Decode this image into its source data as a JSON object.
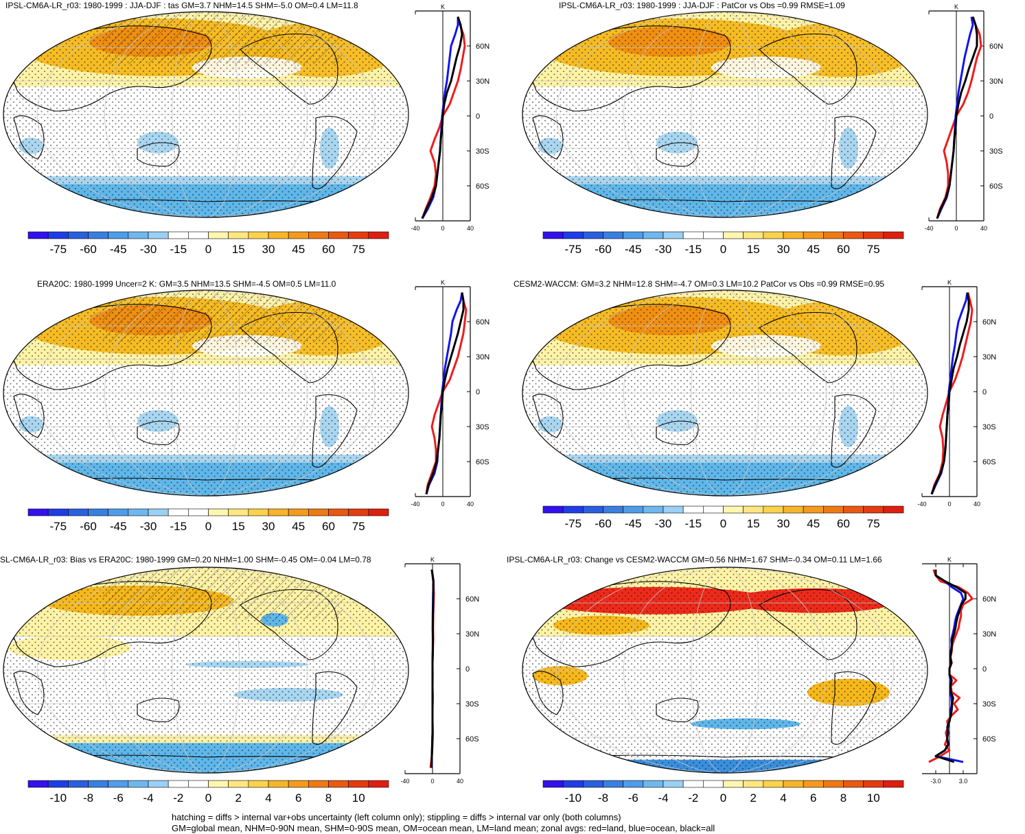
{
  "colors": {
    "land": "#ee1c1c",
    "ocean": "#1414ee",
    "all": "#000000",
    "warm_light": "#fff3a6",
    "warm_mid": "#f6b81b",
    "warm_deep": "#f08a10",
    "cold_light": "#a9d7f2",
    "cold_mid": "#5fb7ea",
    "cold_deep": "#3a8fdc"
  },
  "colorbar_scales": {
    "absolute": [
      "-75",
      "-60",
      "-45",
      "-30",
      "-15",
      "0",
      "15",
      "30",
      "45",
      "60",
      "75"
    ],
    "difference": [
      "-10",
      "-8",
      "-6",
      "-4",
      "-2",
      "0",
      "2",
      "4",
      "6",
      "8",
      "10"
    ]
  },
  "panels": [
    {
      "title": "IPSL-CM6A-LR_r03: 1980-1999 : JJA-DJF : tas GM=3.7 NHM=14.5 SHM=-5.0 OM=0.4 LM=11.8",
      "unit": "K",
      "lat_labels": [
        "60N",
        "30N",
        "0",
        "30S",
        "60S"
      ],
      "x_ticks": [
        "-40",
        "0",
        "40"
      ],
      "colorbar": "absolute"
    },
    {
      "title": "IPSL-CM6A-LR_r03: 1980-1999 : JJA-DJF : PatCor vs Obs =0.99 RMSE=1.09",
      "unit": "K",
      "lat_labels": [
        "60N",
        "30N",
        "0",
        "30S",
        "60S"
      ],
      "x_ticks": [
        "-40",
        "0",
        "40"
      ],
      "colorbar": "absolute"
    },
    {
      "title": "ERA20C: 1980-1999 Uncer=2 K: GM=3.5 NHM=13.5 SHM=-4.5 OM=0.5 LM=11.0",
      "unit": "K",
      "lat_labels": [
        "60N",
        "30N",
        "0",
        "30S",
        "60S"
      ],
      "x_ticks": [
        "-40",
        "0",
        "40"
      ],
      "colorbar": "absolute"
    },
    {
      "title": "CESM2-WACCM: GM=3.2 NHM=12.8 SHM=-4.7 OM=0.3 LM=10.2 PatCor vs Obs =0.99 RMSE=0.95",
      "unit": "K",
      "lat_labels": [
        "60N",
        "30N",
        "0",
        "30S",
        "60S"
      ],
      "x_ticks": [
        "-40",
        "0",
        "40"
      ],
      "colorbar": "absolute"
    },
    {
      "title": "SL-CM6A-LR_r03: Bias vs ERA20C: 1980-1999 GM=0.20 NHM=1.00 SHM=-0.45 OM=-0.04 LM=0.78",
      "unit": "K",
      "lat_labels": [
        "60N",
        "30N",
        "0",
        "30S",
        "60S"
      ],
      "x_ticks": [
        "-40",
        "0",
        "40"
      ],
      "colorbar": "difference"
    },
    {
      "title": "IPSL-CM6A-LR_r03: Change vs CESM2-WACCM GM=0.56 NHM=1.67 SHM=-0.34 OM=0.11 LM=1.66",
      "unit": "K",
      "lat_labels": [
        "60N",
        "30N",
        "0",
        "30S",
        "60S"
      ],
      "x_ticks": [
        "-3.0",
        "3.0"
      ],
      "colorbar": "difference"
    }
  ],
  "chart_data": [
    {
      "type": "line",
      "panel": 0,
      "x_axis": "K",
      "ylim": [
        -90,
        90
      ],
      "xlim": [
        -40,
        40
      ],
      "series": [
        {
          "key": "land",
          "y": [
            -88,
            -80,
            -70,
            -60,
            -50,
            -40,
            -30,
            -20,
            -10,
            0,
            10,
            20,
            30,
            40,
            50,
            60,
            70,
            78,
            85
          ],
          "values": [
            -30,
            -25,
            -18,
            -12,
            -10,
            -12,
            -18,
            -12,
            -5,
            0,
            10,
            16,
            22,
            26,
            29,
            32,
            30,
            25,
            22
          ]
        },
        {
          "key": "ocean",
          "y": [
            -88,
            -80,
            -70,
            -60,
            -50,
            -40,
            -30,
            -20,
            -10,
            0,
            10,
            20,
            30,
            40,
            50,
            60,
            70,
            78,
            85
          ],
          "values": [
            -30,
            -22,
            -14,
            -10,
            -8,
            -6,
            -4,
            -3,
            -2,
            -1,
            1,
            3,
            6,
            8,
            10,
            12,
            18,
            22,
            22
          ]
        },
        {
          "key": "all",
          "y": [
            -88,
            -80,
            -70,
            -60,
            -50,
            -40,
            -30,
            -20,
            -10,
            0,
            10,
            20,
            30,
            40,
            50,
            60,
            70,
            78,
            85
          ],
          "values": [
            -30,
            -24,
            -16,
            -10,
            -8,
            -6,
            -4,
            -3,
            -1,
            0,
            2,
            6,
            12,
            16,
            20,
            25,
            28,
            26,
            22
          ]
        }
      ]
    },
    {
      "type": "line",
      "panel": 1,
      "x_axis": "K",
      "ylim": [
        -90,
        90
      ],
      "xlim": [
        -40,
        40
      ],
      "series": [
        {
          "key": "land",
          "y": [
            -88,
            -80,
            -70,
            -60,
            -50,
            -40,
            -30,
            -20,
            -10,
            0,
            10,
            20,
            30,
            40,
            50,
            60,
            70,
            78,
            85
          ],
          "values": [
            -28,
            -24,
            -16,
            -12,
            -12,
            -14,
            -18,
            -12,
            -6,
            0,
            10,
            17,
            22,
            26,
            30,
            36,
            34,
            28,
            24
          ]
        },
        {
          "key": "ocean",
          "y": [
            -88,
            -80,
            -70,
            -60,
            -50,
            -40,
            -30,
            -20,
            -10,
            0,
            10,
            20,
            30,
            40,
            50,
            60,
            70,
            78,
            85
          ],
          "values": [
            -28,
            -22,
            -14,
            -10,
            -8,
            -6,
            -4,
            -3,
            -2,
            -1,
            1,
            3,
            6,
            9,
            12,
            16,
            20,
            24,
            22
          ]
        },
        {
          "key": "all",
          "y": [
            -88,
            -80,
            -70,
            -60,
            -50,
            -40,
            -30,
            -20,
            -10,
            0,
            10,
            20,
            30,
            40,
            50,
            60,
            70,
            78,
            85
          ],
          "values": [
            -28,
            -23,
            -15,
            -10,
            -8,
            -6,
            -4,
            -3,
            -1,
            0,
            3,
            7,
            13,
            18,
            24,
            30,
            30,
            28,
            24
          ]
        }
      ]
    },
    {
      "type": "line",
      "panel": 2,
      "x_axis": "K",
      "ylim": [
        -90,
        90
      ],
      "xlim": [
        -40,
        40
      ],
      "series": [
        {
          "key": "land",
          "y": [
            -88,
            -80,
            -70,
            -60,
            -50,
            -40,
            -30,
            -20,
            -10,
            0,
            10,
            20,
            30,
            40,
            50,
            60,
            70,
            78,
            85
          ],
          "values": [
            -24,
            -22,
            -16,
            -10,
            -10,
            -12,
            -16,
            -12,
            -6,
            0,
            10,
            16,
            22,
            26,
            30,
            32,
            34,
            30,
            28
          ]
        },
        {
          "key": "ocean",
          "y": [
            -88,
            -80,
            -70,
            -60,
            -50,
            -40,
            -30,
            -20,
            -10,
            0,
            10,
            20,
            30,
            40,
            50,
            60,
            70,
            78,
            85
          ],
          "values": [
            -24,
            -20,
            -12,
            -8,
            -7,
            -5,
            -4,
            -3,
            -2,
            -1,
            1,
            3,
            6,
            9,
            12,
            14,
            20,
            26,
            28
          ]
        },
        {
          "key": "all",
          "y": [
            -88,
            -80,
            -70,
            -60,
            -50,
            -40,
            -30,
            -20,
            -10,
            0,
            10,
            20,
            30,
            40,
            50,
            60,
            70,
            78,
            85
          ],
          "values": [
            -24,
            -21,
            -14,
            -9,
            -7,
            -5,
            -4,
            -3,
            -1,
            0,
            3,
            7,
            12,
            17,
            22,
            26,
            30,
            30,
            28
          ]
        }
      ]
    },
    {
      "type": "line",
      "panel": 3,
      "x_axis": "K",
      "ylim": [
        -90,
        90
      ],
      "xlim": [
        -40,
        40
      ],
      "series": [
        {
          "key": "land",
          "y": [
            -88,
            -80,
            -70,
            -60,
            -50,
            -40,
            -30,
            -20,
            -10,
            0,
            10,
            20,
            30,
            40,
            50,
            60,
            70,
            78,
            85
          ],
          "values": [
            -26,
            -22,
            -14,
            -10,
            -9,
            -10,
            -14,
            -10,
            -5,
            0,
            8,
            14,
            19,
            23,
            27,
            31,
            33,
            30,
            27
          ]
        },
        {
          "key": "ocean",
          "y": [
            -88,
            -80,
            -70,
            -60,
            -50,
            -40,
            -30,
            -20,
            -10,
            0,
            10,
            20,
            30,
            40,
            50,
            60,
            70,
            78,
            85
          ],
          "values": [
            -26,
            -20,
            -12,
            -8,
            -6,
            -5,
            -4,
            -3,
            -2,
            -1,
            1,
            3,
            5,
            8,
            10,
            13,
            19,
            24,
            26
          ]
        },
        {
          "key": "all",
          "y": [
            -88,
            -80,
            -70,
            -60,
            -50,
            -40,
            -30,
            -20,
            -10,
            0,
            10,
            20,
            30,
            40,
            50,
            60,
            70,
            78,
            85
          ],
          "values": [
            -26,
            -21,
            -13,
            -8,
            -6,
            -5,
            -4,
            -3,
            -1,
            0,
            3,
            6,
            11,
            15,
            20,
            25,
            28,
            28,
            26
          ]
        }
      ]
    },
    {
      "type": "line",
      "panel": 4,
      "x_axis": "K",
      "ylim": [
        -90,
        90
      ],
      "xlim": [
        -40,
        40
      ],
      "series": [
        {
          "key": "land",
          "y": [
            -85,
            -75,
            -65,
            -55,
            -45,
            -35,
            -25,
            -15,
            -5,
            5,
            15,
            25,
            35,
            45,
            55,
            65,
            75,
            85
          ],
          "values": [
            -3,
            -1,
            0,
            0.5,
            0,
            0,
            0.5,
            0,
            0.2,
            0,
            0.5,
            1,
            0.8,
            1,
            1.5,
            2,
            1,
            -1
          ]
        },
        {
          "key": "ocean",
          "y": [
            -85,
            -75,
            -65,
            -55,
            -45,
            -35,
            -25,
            -15,
            -5,
            5,
            15,
            25,
            35,
            45,
            55,
            65,
            75,
            85
          ],
          "values": [
            -1,
            -1,
            -0.5,
            0,
            0,
            0,
            0,
            0,
            0,
            0,
            0.3,
            0.4,
            0.2,
            0.3,
            0.6,
            0.8,
            1.5,
            -1
          ]
        },
        {
          "key": "all",
          "y": [
            -85,
            -75,
            -65,
            -55,
            -45,
            -35,
            -25,
            -15,
            -5,
            5,
            15,
            25,
            35,
            45,
            55,
            65,
            75,
            85
          ],
          "values": [
            -1.5,
            -1,
            -0.5,
            0,
            0,
            0,
            0,
            0,
            0,
            0,
            0.4,
            0.6,
            0.4,
            0.6,
            1,
            1.2,
            1.3,
            -1
          ]
        }
      ]
    },
    {
      "type": "line",
      "panel": 5,
      "x_axis": "K",
      "ylim": [
        -90,
        90
      ],
      "xlim": [
        -6,
        6
      ],
      "series": [
        {
          "key": "land",
          "y": [
            -80,
            -75,
            -70,
            -65,
            -60,
            -55,
            -50,
            -45,
            -40,
            -35,
            -30,
            -25,
            -20,
            -15,
            -10,
            -5,
            0,
            5,
            10,
            15,
            20,
            25,
            30,
            35,
            40,
            45,
            50,
            55,
            60,
            65,
            70,
            75,
            80,
            85
          ],
          "values": [
            -4.5,
            -2,
            0,
            -1,
            -0.5,
            -0.8,
            -0.3,
            -0.5,
            0.5,
            1.8,
            1,
            2.2,
            0.5,
            0.3,
            1.5,
            0,
            0,
            0.5,
            0.2,
            0.5,
            0.6,
            1,
            1.5,
            2,
            2.2,
            2.5,
            2.5,
            3,
            5,
            4,
            2,
            -2,
            -3,
            -3.5
          ]
        },
        {
          "key": "ocean",
          "y": [
            -80,
            -75,
            -70,
            -65,
            -60,
            -55,
            -50,
            -45,
            -40,
            -35,
            -30,
            -25,
            -20,
            -15,
            -10,
            -5,
            0,
            5,
            10,
            15,
            20,
            25,
            30,
            35,
            40,
            45,
            50,
            55,
            60,
            65,
            70,
            75,
            80,
            85
          ],
          "values": [
            3,
            -3,
            -1,
            -0.2,
            -0.5,
            -0.3,
            -0.5,
            0,
            0.2,
            0.3,
            0.5,
            0.4,
            0.2,
            0.2,
            0.2,
            0,
            0,
            0.3,
            0.2,
            0.3,
            0.5,
            0.4,
            0.7,
            1,
            1.2,
            1.5,
            2,
            2.5,
            3,
            2.5,
            0.5,
            -1,
            -3,
            -3
          ]
        },
        {
          "key": "all",
          "y": [
            -80,
            -75,
            -70,
            -65,
            -60,
            -55,
            -50,
            -45,
            -40,
            -35,
            -30,
            -25,
            -20,
            -15,
            -10,
            -5,
            0,
            5,
            10,
            15,
            20,
            25,
            30,
            35,
            40,
            45,
            50,
            55,
            60,
            65,
            70,
            75,
            80,
            85
          ],
          "values": [
            1,
            -3,
            -1,
            -0.3,
            -0.5,
            -0.4,
            -0.4,
            0,
            0.3,
            0.5,
            0.6,
            0.8,
            0.3,
            0.2,
            0.5,
            0,
            0,
            0.4,
            0.2,
            0.4,
            0.5,
            0.6,
            1,
            1.3,
            1.5,
            1.8,
            2.2,
            2.6,
            3.5,
            3.5,
            1.5,
            -1,
            -3,
            -3
          ]
        }
      ]
    }
  ],
  "footer": {
    "line1": "hatching = diffs > internal var+obs uncertainty (left column only); stippling = diffs > internal var only (both columns)",
    "line2": "GM=global mean, NHM=0-90N mean, SHM=0-90S mean, OM=ocean mean, LM=land mean; zonal avgs: red=land, blue=ocean, black=all"
  }
}
